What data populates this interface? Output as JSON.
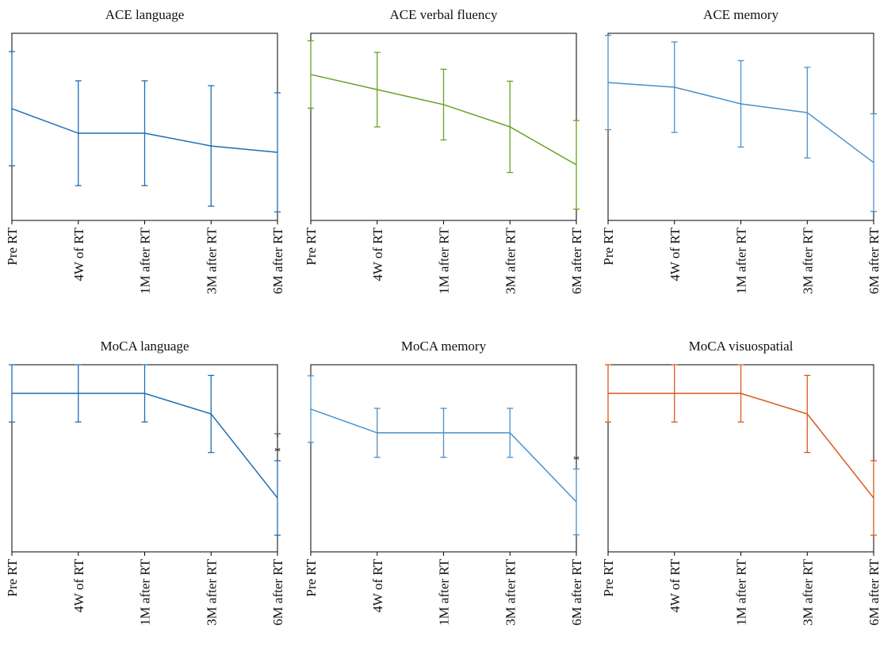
{
  "chart_data": [
    {
      "type": "line",
      "title": "ACE language",
      "categories": [
        "Pre RT",
        "4W of RT",
        "1M after RT",
        "3M after RT",
        "6M after RT"
      ],
      "ylim": [
        0,
        100
      ],
      "series": [
        {
          "color": "#1f6db4",
          "values": [
            59.7,
            46.6,
            46.6,
            39.8,
            36.4
          ],
          "errors": [
            30.5,
            28,
            28,
            32.2,
            31.8
          ]
        }
      ],
      "annotations": []
    },
    {
      "type": "line",
      "title": "ACE verbal fluency",
      "categories": [
        "Pre RT",
        "4W of RT",
        "1M after RT",
        "3M after RT",
        "6M after RT"
      ],
      "ylim": [
        0,
        100
      ],
      "series": [
        {
          "color": "#6aa124",
          "values": [
            78,
            69.9,
            61.9,
            50,
            29.7
          ],
          "errors": [
            18,
            19.9,
            18.9,
            24.4,
            23.7
          ]
        }
      ],
      "annotations": []
    },
    {
      "type": "line",
      "title": "ACE memory",
      "categories": [
        "Pre RT",
        "4W of RT",
        "1M after RT",
        "3M after RT",
        "6M after RT"
      ],
      "ylim": [
        0,
        100
      ],
      "series": [
        {
          "color": "#4a90c8",
          "values": [
            73.7,
            71.2,
            62.3,
            57.6,
            30.9
          ],
          "errors": [
            25.2,
            24.2,
            23.1,
            24.2,
            26.1
          ]
        }
      ],
      "annotations": []
    },
    {
      "type": "line",
      "title": "MoCA language",
      "categories": [
        "Pre RT",
        "4W of RT",
        "1M after RT",
        "3M after RT",
        "6M after RT"
      ],
      "ylim": [
        0,
        100
      ],
      "series": [
        {
          "color": "#1f6db4",
          "values": [
            84.7,
            84.7,
            84.7,
            73.7,
            28.8
          ],
          "errors": [
            15.3,
            15.3,
            15.3,
            20.6,
            19.9
          ]
        }
      ],
      "annotations": [
        "†",
        "*"
      ]
    },
    {
      "type": "line",
      "title": "MoCA memory",
      "categories": [
        "Pre RT",
        "4W of RT",
        "1M after RT",
        "3M after RT",
        "6M after RT"
      ],
      "ylim": [
        0,
        100
      ],
      "series": [
        {
          "color": "#4a90c8",
          "values": [
            76.3,
            63.6,
            63.6,
            63.6,
            26.7
          ],
          "errors": [
            17.8,
            13.1,
            13.1,
            13.1,
            17.6
          ]
        }
      ],
      "annotations": [
        "*"
      ]
    },
    {
      "type": "line",
      "title": "MoCA visuospatial",
      "categories": [
        "Pre RT",
        "4W of RT",
        "1M after RT",
        "3M after RT",
        "6M after RT"
      ],
      "ylim": [
        0,
        100
      ],
      "series": [
        {
          "color": "#d9591b",
          "values": [
            84.7,
            84.7,
            84.7,
            73.7,
            28.8
          ],
          "errors": [
            15.3,
            15.3,
            15.3,
            20.6,
            19.9
          ]
        }
      ],
      "annotations": []
    }
  ]
}
